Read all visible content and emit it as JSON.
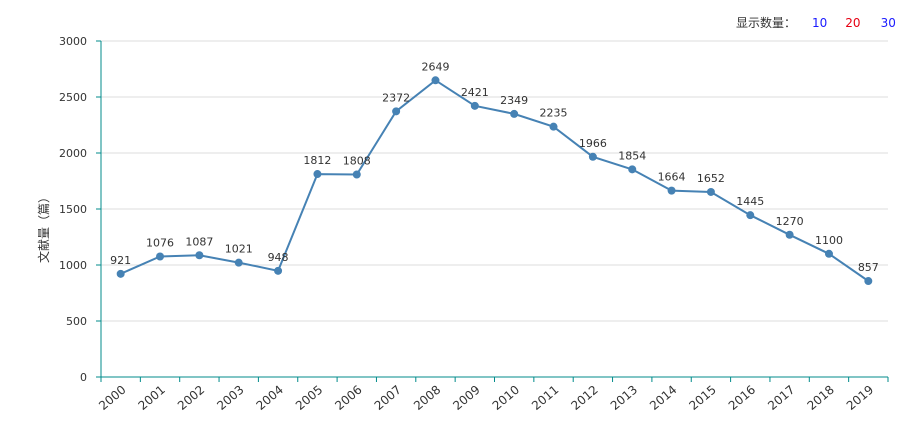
{
  "controls": {
    "label": "显示数量：",
    "options": [
      "10",
      "20",
      "30"
    ],
    "option_colors": [
      "#1a1aff",
      "#e60012",
      "#1a1aff"
    ]
  },
  "chart_data": {
    "type": "line",
    "title": "",
    "xlabel": "",
    "ylabel": "文献量（篇）",
    "categories": [
      "2000",
      "2001",
      "2002",
      "2003",
      "2004",
      "2005",
      "2006",
      "2007",
      "2008",
      "2009",
      "2010",
      "2011",
      "2012",
      "2013",
      "2014",
      "2015",
      "2016",
      "2017",
      "2018",
      "2019"
    ],
    "values": [
      921,
      1076,
      1087,
      1021,
      948,
      1812,
      1808,
      2372,
      2649,
      2421,
      2349,
      2235,
      1966,
      1854,
      1664,
      1652,
      1445,
      1270,
      1100,
      857
    ],
    "data_labels": [
      "921",
      "1076",
      "1087",
      "1021",
      "948",
      "1812",
      "1808",
      "2372",
      "2649",
      "2421",
      "2349",
      "2235",
      "1966",
      "1854",
      "1664",
      "1652",
      "1445",
      "1270",
      "1100",
      "857"
    ],
    "ylim": [
      0,
      3000
    ],
    "yticks": [
      "0",
      "500",
      "1000",
      "1500",
      "2000",
      "2500",
      "3000"
    ],
    "grid": true,
    "legend": "none",
    "colors": {
      "line": "#4682b4",
      "axis": "#008b8b",
      "grid": "#dddddd",
      "tick_text": "#333333"
    }
  }
}
